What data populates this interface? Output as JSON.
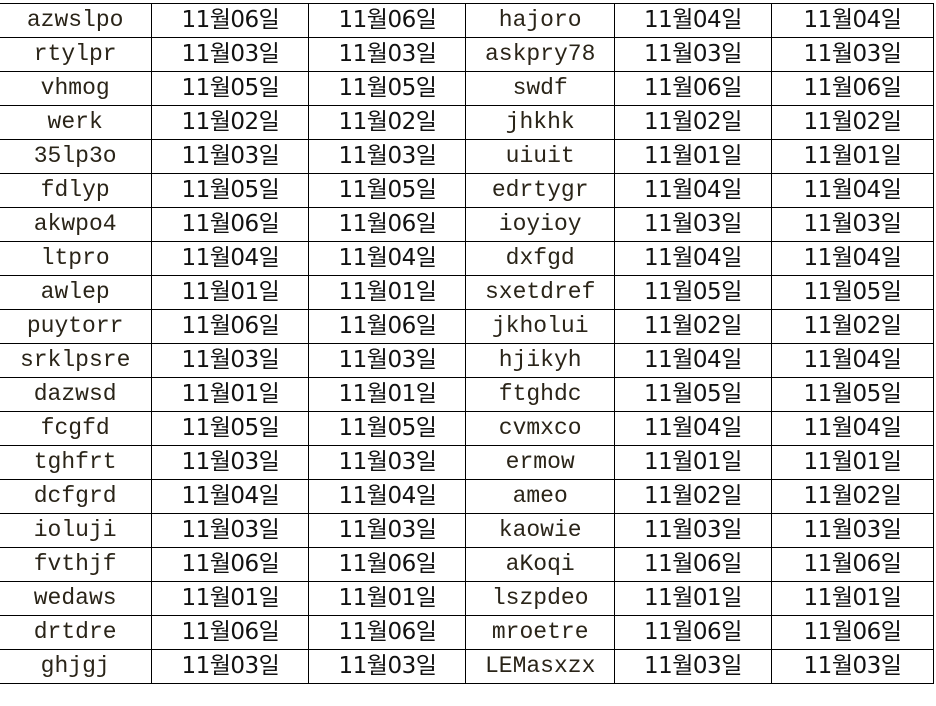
{
  "spreadsheet": {
    "rows": [
      [
        "azwslpo",
        "11월06일",
        "11월06일",
        "hajoro",
        "11월04일",
        "11월04일"
      ],
      [
        "rtylpr",
        "11월03일",
        "11월03일",
        "askpry78",
        "11월03일",
        "11월03일"
      ],
      [
        "vhmog",
        "11월05일",
        "11월05일",
        "swdf",
        "11월06일",
        "11월06일"
      ],
      [
        "werk",
        "11월02일",
        "11월02일",
        "jhkhk",
        "11월02일",
        "11월02일"
      ],
      [
        "35lp3o",
        "11월03일",
        "11월03일",
        "uiuit",
        "11월01일",
        "11월01일"
      ],
      [
        "fdlyp",
        "11월05일",
        "11월05일",
        "edrtygr",
        "11월04일",
        "11월04일"
      ],
      [
        "akwpo4",
        "11월06일",
        "11월06일",
        "ioyioy",
        "11월03일",
        "11월03일"
      ],
      [
        "ltpro",
        "11월04일",
        "11월04일",
        "dxfgd",
        "11월04일",
        "11월04일"
      ],
      [
        "awlep",
        "11월01일",
        "11월01일",
        "sxetdref",
        "11월05일",
        "11월05일"
      ],
      [
        "puytorr",
        "11월06일",
        "11월06일",
        "jkholui",
        "11월02일",
        "11월02일"
      ],
      [
        "srklpsre",
        "11월03일",
        "11월03일",
        "hjikyh",
        "11월04일",
        "11월04일"
      ],
      [
        "dazwsd",
        "11월01일",
        "11월01일",
        "ftghdc",
        "11월05일",
        "11월05일"
      ],
      [
        "fcgfd",
        "11월05일",
        "11월05일",
        "cvmxco",
        "11월04일",
        "11월04일"
      ],
      [
        "tghfrt",
        "11월03일",
        "11월03일",
        "ermow",
        "11월01일",
        "11월01일"
      ],
      [
        "dcfgrd",
        "11월04일",
        "11월04일",
        "ameo",
        "11월02일",
        "11월02일"
      ],
      [
        "ioluji",
        "11월03일",
        "11월03일",
        "kaowie",
        "11월03일",
        "11월03일"
      ],
      [
        "fvthjf",
        "11월06일",
        "11월06일",
        "aKoqi",
        "11월06일",
        "11월06일"
      ],
      [
        "wedaws",
        "11월01일",
        "11월01일",
        "lszpdeo",
        "11월01일",
        "11월01일"
      ],
      [
        "drtdre",
        "11월06일",
        "11월06일",
        "mroetre",
        "11월06일",
        "11월06일"
      ],
      [
        "ghjgj",
        "11월03일",
        "11월03일",
        "LEMasxzx",
        "11월03일",
        "11월03일"
      ]
    ]
  }
}
